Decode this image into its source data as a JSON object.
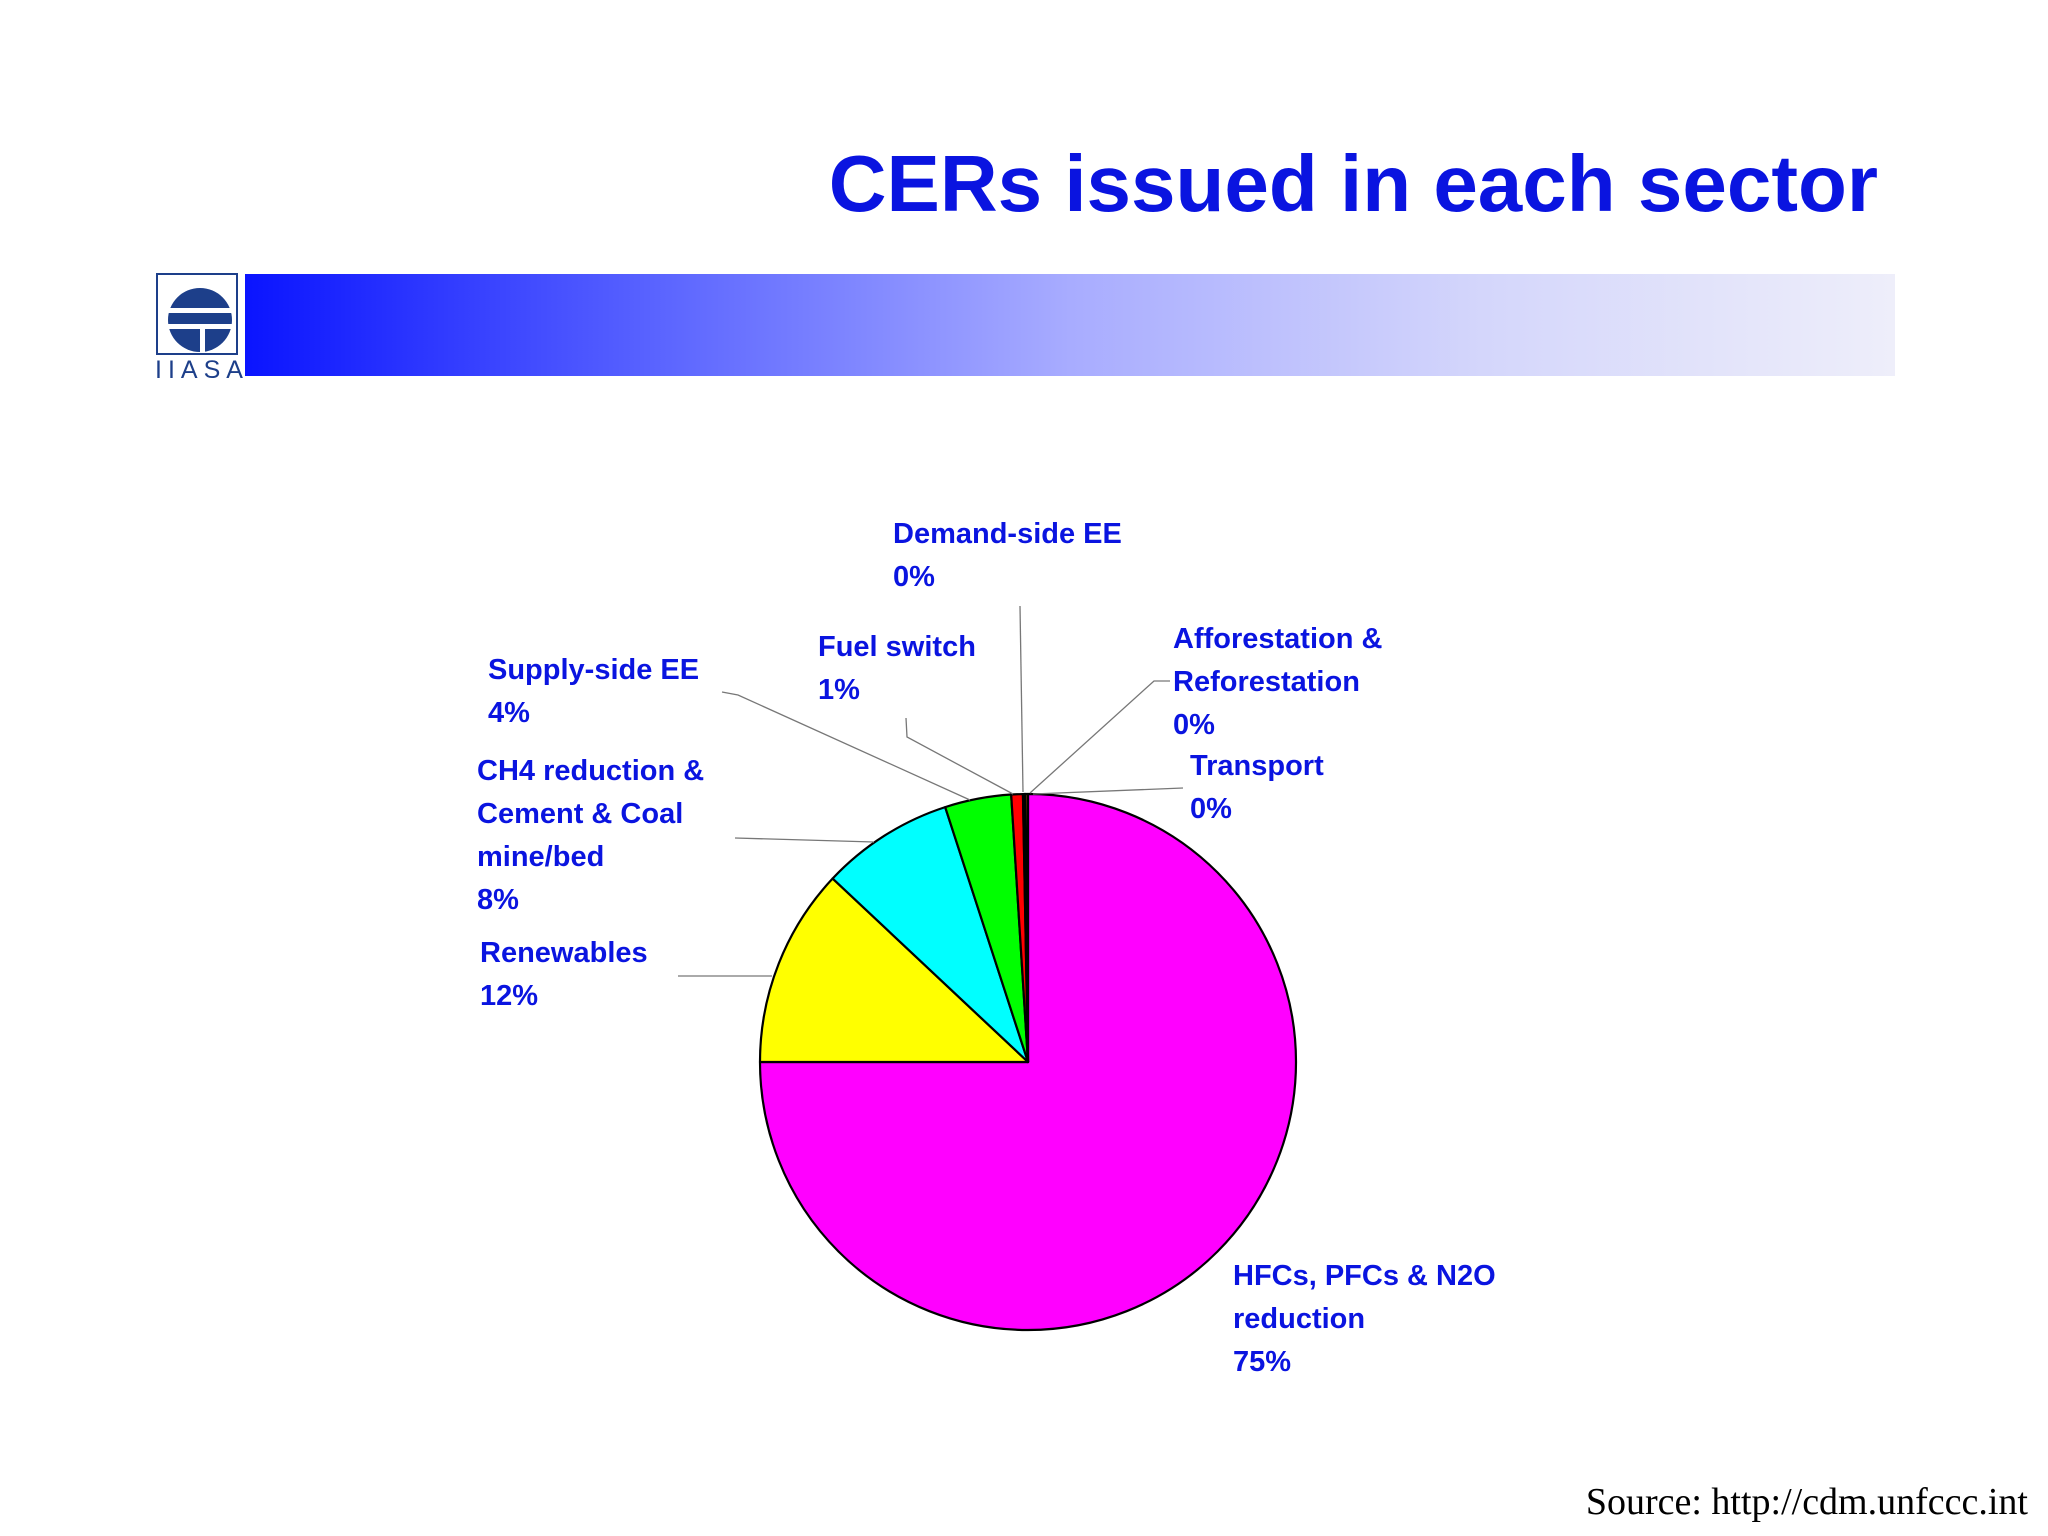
{
  "slide": {
    "title": "CERs issued in each sector",
    "logo_text": "IIASA",
    "source": "Source: http://cdm.unfccc.int"
  },
  "colors": {
    "title": "#0a14e0",
    "label": "#0a14e0",
    "slice_outline": "#000000"
  },
  "chart_data": {
    "type": "pie",
    "title": "",
    "start": "12 o'clock, clockwise",
    "slices": [
      {
        "label": "HFCs, PFCs & N2O reduction",
        "percent": "75%",
        "value": 75.0,
        "color": "#ff00ff"
      },
      {
        "label": "Renewables",
        "percent": "12%",
        "value": 12.0,
        "color": "#ffff00"
      },
      {
        "label": "CH4 reduction & Cement & Coal mine/bed",
        "percent": "8%",
        "value": 8.0,
        "color": "#00ffff"
      },
      {
        "label": "Supply-side EE",
        "percent": "4%",
        "value": 4.0,
        "color": "#00ff00"
      },
      {
        "label": "Fuel switch",
        "percent": "1%",
        "value": 0.7,
        "color": "#ff0000"
      },
      {
        "label": "Demand-side EE",
        "percent": "0%",
        "value": 0.1,
        "color": "#0000ff"
      },
      {
        "label": "Afforestation & Reforestation",
        "percent": "0%",
        "value": 0.05,
        "color": "#008000"
      },
      {
        "label": "Transport",
        "percent": "0%",
        "value": 0.15,
        "color": "#ff8000"
      }
    ]
  }
}
